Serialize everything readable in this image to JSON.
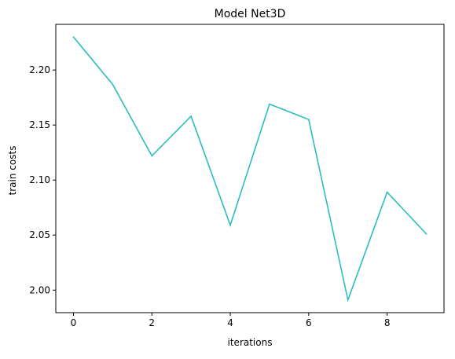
{
  "chart_data": {
    "type": "line",
    "title": "Model Net3D",
    "xlabel": "iterations",
    "ylabel": "train costs",
    "x": [
      0,
      1,
      2,
      3,
      4,
      5,
      6,
      7,
      8,
      9
    ],
    "series": [
      {
        "values": [
          2.23,
          2.187,
          2.122,
          2.158,
          2.059,
          2.169,
          2.155,
          1.991,
          2.089,
          2.051
        ],
        "color": "#2cbdbd"
      }
    ],
    "xlim": [
      -0.45,
      9.45
    ],
    "ylim": [
      1.9795,
      2.2415
    ],
    "xticks": [
      0,
      2,
      4,
      6,
      8
    ],
    "xtick_labels": [
      "0",
      "2",
      "4",
      "6",
      "8"
    ],
    "yticks": [
      2.0,
      2.05,
      2.1,
      2.15,
      2.2
    ],
    "ytick_labels": [
      "2.00",
      "2.05",
      "2.10",
      "2.15",
      "2.20"
    ],
    "grid": false,
    "legend": "none"
  }
}
